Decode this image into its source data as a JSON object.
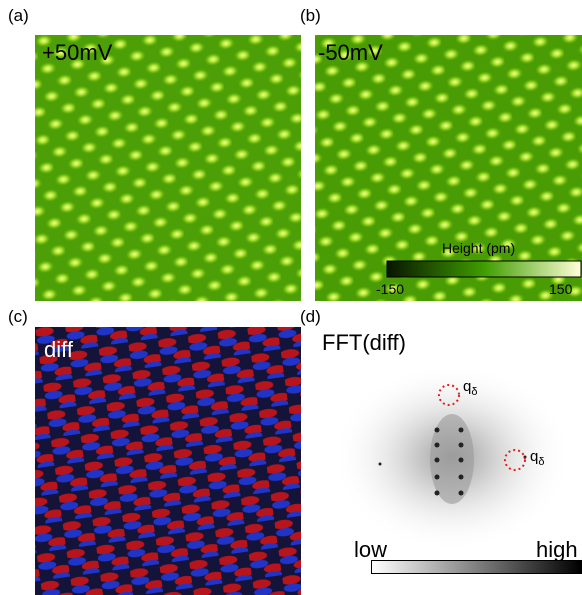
{
  "panels": {
    "a": {
      "tag": "(a)",
      "overlay": "+50mV",
      "image": "stm-topography-lattice"
    },
    "b": {
      "tag": "(b)",
      "overlay": "-50mV",
      "image": "stm-topography-lattice"
    },
    "c": {
      "tag": "(c)",
      "overlay": "diff",
      "image": "difference-map"
    },
    "d": {
      "tag": "(d)",
      "overlay": "FFT(diff)",
      "image": "fft-spectrum"
    }
  },
  "height_colorbar": {
    "title": "Height (pm)",
    "min_label": "-150",
    "max_label": "150",
    "colors": [
      "#081600",
      "#3f9d00",
      "#ffffd8"
    ]
  },
  "fft_colorbar": {
    "low_label": "low",
    "high_label": "high",
    "colors": [
      "#ffffff",
      "#000000"
    ]
  },
  "fft_markers": [
    {
      "label_main": "q",
      "label_sub": "δ",
      "color": "#e0201c"
    },
    {
      "label_main": "q",
      "label_sub": "δ",
      "color": "#e0201c"
    }
  ]
}
